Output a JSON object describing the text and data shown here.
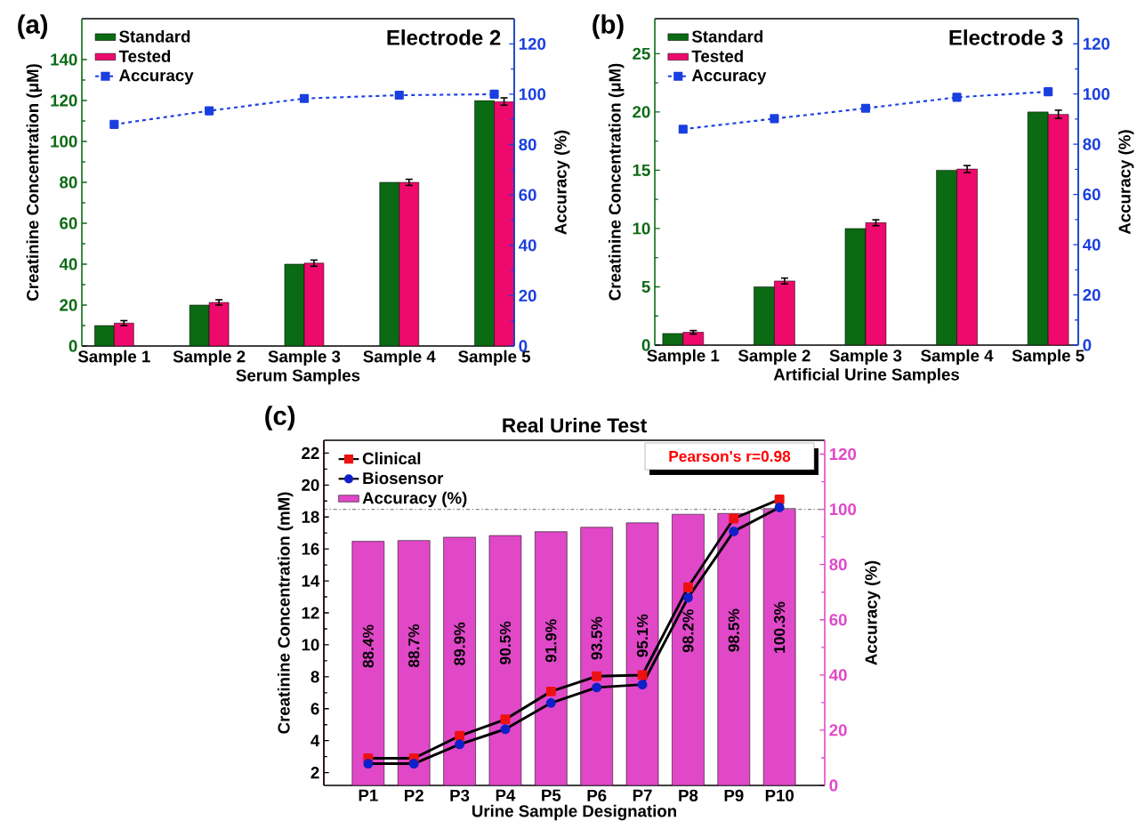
{
  "chart_data": [
    {
      "type": "bar",
      "annotations": [
        "(a)",
        "Electrode 2"
      ],
      "xlabel": "Serum Samples",
      "ylabel": "Creatinine Concentration (μM)",
      "y2label": "Accuracy (%)",
      "categories": [
        "Sample 1",
        "Sample 2",
        "Sample 3",
        "Sample 4",
        "Sample 5"
      ],
      "series": [
        {
          "name": "Standard",
          "color": "#0b6a14",
          "values": [
            10,
            20,
            40,
            80,
            120
          ]
        },
        {
          "name": "Tested",
          "color": "#ee0a6c",
          "values": [
            11.2,
            21.3,
            40.5,
            80,
            119.5
          ],
          "errors": [
            1.2,
            1.3,
            1.5,
            1.5,
            1.8
          ]
        },
        {
          "name": "Accuracy",
          "type": "line",
          "axis": "y2",
          "color": "#1a3fe0",
          "marker": "square",
          "line_style": "dashed",
          "values": [
            88.0,
            93.4,
            98.3,
            99.6,
            100.0
          ]
        }
      ],
      "ylim": [
        0,
        160
      ],
      "yticks": [
        0,
        20,
        40,
        60,
        80,
        100,
        120,
        140
      ],
      "y2lim": [
        0,
        130
      ],
      "y2ticks": [
        0,
        20,
        40,
        60,
        80,
        100,
        120
      ],
      "legend": "top left"
    },
    {
      "type": "bar",
      "annotations": [
        "(b)",
        "Electrode 3"
      ],
      "xlabel": "Artificial Urine Samples",
      "ylabel": "Creatinine Concentration (μM)",
      "y2label": "Accuracy (%)",
      "categories": [
        "Sample 1",
        "Sample 2",
        "Sample 3",
        "Sample 4",
        "Sample 5"
      ],
      "series": [
        {
          "name": "Standard",
          "color": "#0b6a14",
          "values": [
            1,
            5,
            10,
            15,
            20
          ]
        },
        {
          "name": "Tested",
          "color": "#ee0a6c",
          "values": [
            1.1,
            5.5,
            10.5,
            15.1,
            19.8
          ],
          "errors": [
            0.15,
            0.25,
            0.25,
            0.3,
            0.35
          ]
        },
        {
          "name": "Accuracy",
          "type": "line",
          "axis": "y2",
          "color": "#1a3fe0",
          "marker": "square",
          "line_style": "dashed",
          "values": [
            86.0,
            90.2,
            94.3,
            98.7,
            100.9
          ]
        }
      ],
      "ylim": [
        0,
        28
      ],
      "yticks": [
        0,
        5,
        10,
        15,
        20,
        25
      ],
      "y2lim": [
        0,
        130
      ],
      "y2ticks": [
        0,
        20,
        40,
        60,
        80,
        100,
        120
      ],
      "legend": "top left"
    },
    {
      "type": "bar",
      "title": "Real Urine Test",
      "annotations": [
        "(c)",
        "Pearson's r=0.98"
      ],
      "xlabel": "Urine Sample Designation",
      "ylabel": "Creatinine Concentration (mM)",
      "y2label": "Accuracy (%)",
      "categories": [
        "P1",
        "P2",
        "P3",
        "P4",
        "P5",
        "P6",
        "P7",
        "P8",
        "P9",
        "P10"
      ],
      "series": [
        {
          "name": "Clinical",
          "type": "line",
          "color": "#ee1111",
          "marker": "square",
          "line_style": "solid",
          "values": [
            2.9,
            2.9,
            4.3,
            5.33,
            7.08,
            8.03,
            8.1,
            13.6,
            17.9,
            19.1
          ]
        },
        {
          "name": "Biosensor",
          "type": "line",
          "color": "#1020c8",
          "marker": "circle",
          "line_style": "solid",
          "values": [
            2.56,
            2.56,
            3.77,
            4.72,
            6.36,
            7.33,
            7.51,
            12.95,
            17.1,
            18.6
          ]
        },
        {
          "name": "Accuracy (%)",
          "type": "bar",
          "axis": "y2",
          "color": "#e048c8",
          "values": [
            88.4,
            88.7,
            89.9,
            90.5,
            91.9,
            93.5,
            95.1,
            98.2,
            98.5,
            100.3
          ],
          "value_labels": [
            "88.4%",
            "88.7%",
            "89.9%",
            "90.5%",
            "91.9%",
            "93.5%",
            "95.1%",
            "98.2%",
            "98.5%",
            "100.3%"
          ]
        }
      ],
      "ref_lines": [
        {
          "axis": "y2",
          "value": 100,
          "color": "#888888",
          "line_style": "dashdot"
        }
      ],
      "ylim": [
        1.2,
        22.8
      ],
      "yticks": [
        2,
        4,
        6,
        8,
        10,
        12,
        14,
        16,
        18,
        20,
        22
      ],
      "y2lim": [
        0,
        125
      ],
      "y2ticks": [
        0,
        20,
        40,
        60,
        80,
        100,
        120
      ],
      "legend": "top left"
    }
  ]
}
